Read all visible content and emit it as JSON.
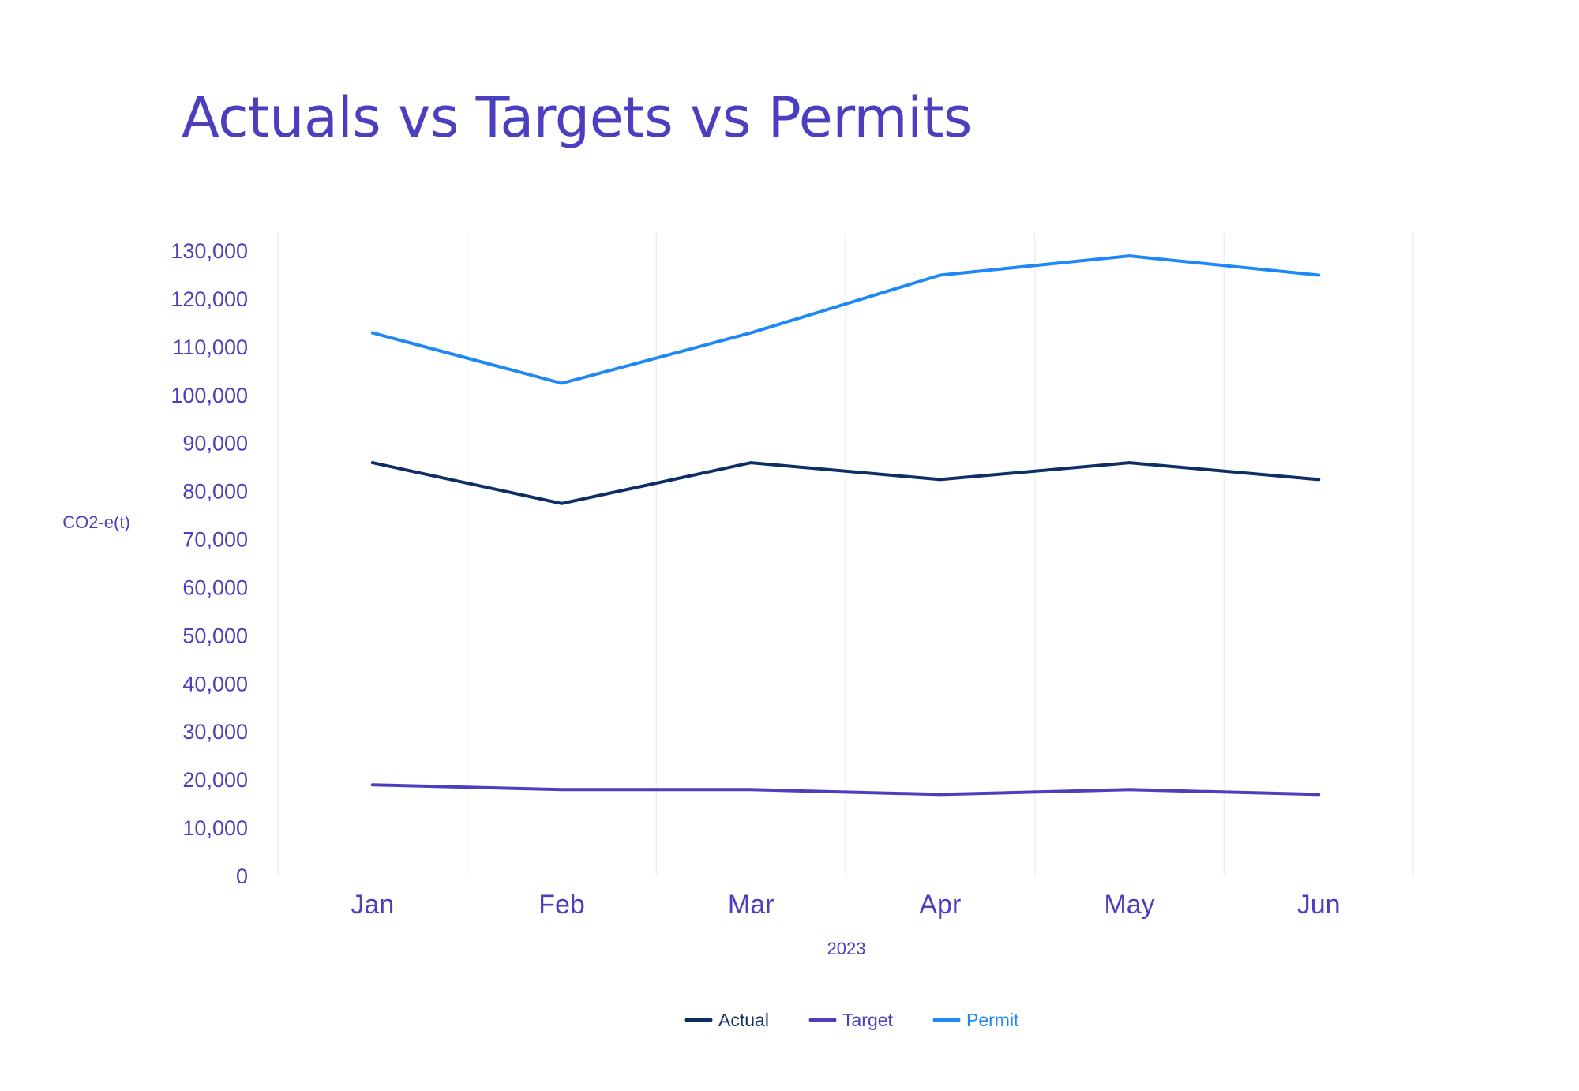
{
  "chart_data": {
    "type": "line",
    "title": "Actuals vs Targets vs Permits",
    "xlabel": "2023",
    "ylabel": "CO2-e(t)",
    "categories": [
      "Jan",
      "Feb",
      "Mar",
      "Apr",
      "May",
      "Jun"
    ],
    "ylim": [
      0,
      130000
    ],
    "yticks": [
      0,
      10000,
      20000,
      30000,
      40000,
      50000,
      60000,
      70000,
      80000,
      90000,
      100000,
      110000,
      120000,
      130000
    ],
    "grid": "vertical",
    "legend_position": "bottom-center",
    "series": [
      {
        "name": "Actual",
        "color": "#0D2F66",
        "values": [
          86000,
          77500,
          86000,
          82500,
          86000,
          82500
        ]
      },
      {
        "name": "Target",
        "color": "#4B3FBF",
        "values": [
          19000,
          18000,
          18000,
          17000,
          18000,
          17000
        ]
      },
      {
        "name": "Permit",
        "color": "#1E88F5",
        "values": [
          113000,
          102500,
          113000,
          125000,
          129000,
          125000
        ]
      }
    ]
  },
  "colors": {
    "title": "#4B3FBF",
    "axis_text": "#4B3FBF",
    "grid": "#EEEEF2"
  }
}
